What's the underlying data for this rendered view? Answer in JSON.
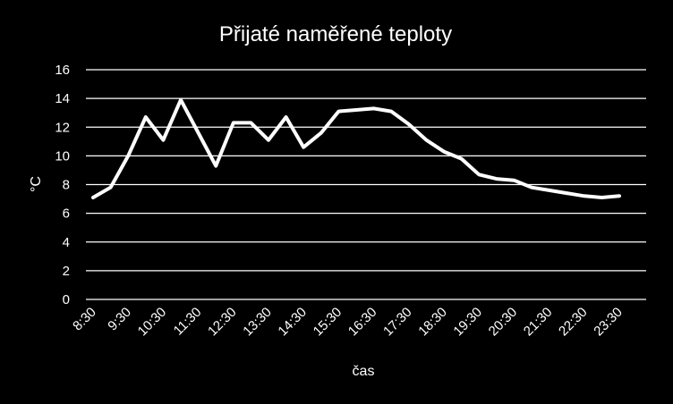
{
  "chart_data": {
    "type": "line",
    "title": "Přijaté naměřené teploty",
    "xlabel": "čas",
    "ylabel": "°C",
    "ylim": [
      0,
      16
    ],
    "y_ticks": [
      "0",
      "2",
      "4",
      "6",
      "8",
      "10",
      "12",
      "14",
      "16"
    ],
    "x_tick_labels": [
      "8:30",
      "9:30",
      "10:30",
      "11:30",
      "12:30",
      "13:30",
      "14:30",
      "15:30",
      "16:30",
      "17:30",
      "18:30",
      "19:30",
      "20:30",
      "21:30",
      "22:30",
      "23:30"
    ],
    "grid": true,
    "x": [
      "8:30",
      "9:00",
      "9:30",
      "10:00",
      "10:30",
      "11:00",
      "11:30",
      "12:00",
      "12:30",
      "13:00",
      "13:30",
      "14:00",
      "14:30",
      "15:00",
      "15:30",
      "16:00",
      "16:30",
      "17:00",
      "17:30",
      "18:00",
      "18:30",
      "19:00",
      "19:30",
      "20:00",
      "20:30",
      "21:00",
      "21:30",
      "22:00",
      "22:30",
      "23:00",
      "23:30"
    ],
    "series": [
      {
        "values": [
          7.1,
          7.8,
          10.0,
          12.7,
          11.1,
          13.9,
          11.6,
          9.3,
          12.3,
          12.3,
          11.1,
          12.7,
          10.6,
          11.6,
          13.1,
          13.2,
          13.3,
          13.1,
          12.2,
          11.1,
          10.3,
          9.8,
          8.7,
          8.4,
          8.3,
          7.8,
          7.6,
          7.4,
          7.2,
          7.1,
          7.2
        ],
        "color": "#ffffff"
      }
    ]
  }
}
